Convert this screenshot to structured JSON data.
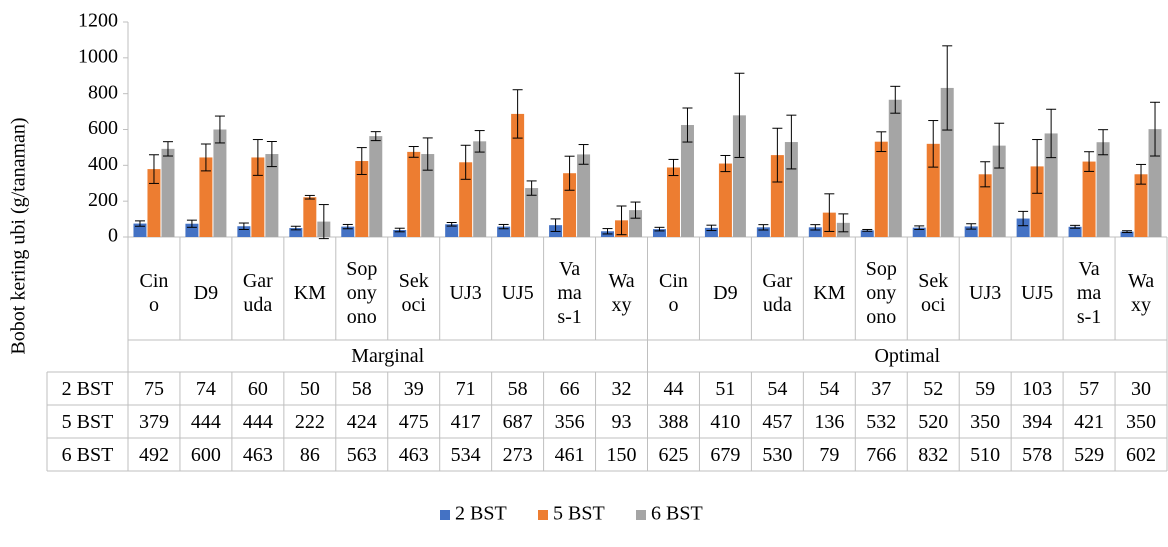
{
  "chart_data": {
    "type": "bar",
    "y_label": "Bobot kering ubi (g/tanaman)",
    "ylim": [
      0,
      1200
    ],
    "yticks": [
      0,
      200,
      400,
      600,
      800,
      1000,
      1200
    ],
    "groups": [
      {
        "name": "Marginal",
        "categories": [
          "Cin\no",
          "D9",
          "Gar\nuda",
          "KM",
          "Sop\nony\nono",
          "Sek\noci",
          "UJ3",
          "UJ5",
          "Va\nma\ns-1",
          "Wa\nxy"
        ]
      },
      {
        "name": "Optimal",
        "categories": [
          "Cin\no",
          "D9",
          "Gar\nuda",
          "KM",
          "Sop\nony\nono",
          "Sek\noci",
          "UJ3",
          "UJ5",
          "Va\nma\ns-1",
          "Wa\nxy"
        ]
      }
    ],
    "series": [
      {
        "name": "2 BST",
        "color": "#4472c4",
        "values": [
          75,
          74,
          60,
          50,
          58,
          39,
          71,
          58,
          66,
          32,
          44,
          51,
          54,
          54,
          37,
          52,
          59,
          103,
          57,
          30
        ],
        "errors": [
          15,
          20,
          18,
          10,
          12,
          10,
          10,
          12,
          35,
          15,
          10,
          15,
          15,
          15,
          5,
          10,
          15,
          40,
          8,
          5
        ]
      },
      {
        "name": "5 BST",
        "color": "#ed7d31",
        "values": [
          379,
          444,
          444,
          222,
          424,
          475,
          417,
          687,
          356,
          93,
          388,
          410,
          457,
          136,
          532,
          520,
          350,
          394,
          421,
          350
        ],
        "errors": [
          80,
          75,
          100,
          10,
          75,
          30,
          95,
          135,
          95,
          80,
          45,
          45,
          150,
          105,
          55,
          130,
          70,
          150,
          55,
          55
        ]
      },
      {
        "name": "6 BST",
        "color": "#a5a5a5",
        "values": [
          492,
          600,
          463,
          86,
          563,
          463,
          534,
          273,
          461,
          150,
          625,
          679,
          530,
          79,
          766,
          832,
          510,
          578,
          529,
          602
        ],
        "errors": [
          40,
          75,
          70,
          95,
          25,
          90,
          60,
          40,
          55,
          45,
          95,
          235,
          150,
          50,
          75,
          235,
          125,
          135,
          70,
          150
        ]
      }
    ]
  }
}
